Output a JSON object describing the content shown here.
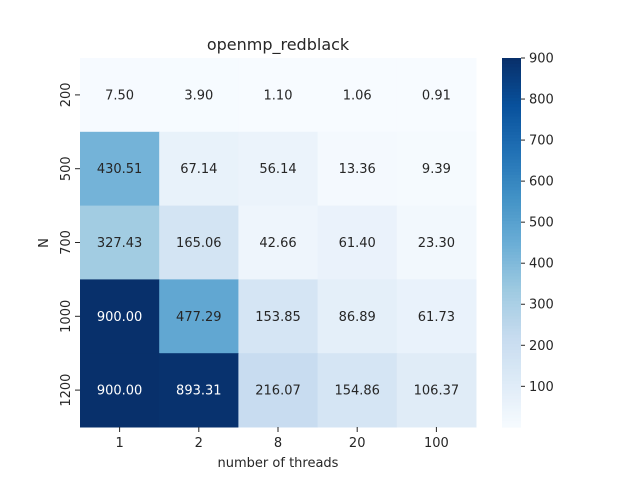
{
  "chart_data": {
    "type": "heatmap",
    "title": "openmp_redblack",
    "xlabel": "number of threads",
    "ylabel": "N",
    "x_categories": [
      "1",
      "2",
      "8",
      "20",
      "100"
    ],
    "y_categories": [
      "200",
      "500",
      "700",
      "1000",
      "1200"
    ],
    "values": [
      [
        7.5,
        3.9,
        1.1,
        1.06,
        0.91
      ],
      [
        430.51,
        67.14,
        56.14,
        13.36,
        9.39
      ],
      [
        327.43,
        165.06,
        42.66,
        61.4,
        23.3
      ],
      [
        900.0,
        477.29,
        153.85,
        86.89,
        61.73
      ],
      [
        900.0,
        893.31,
        216.07,
        154.86,
        106.37
      ]
    ],
    "cell_labels": [
      [
        "7.50",
        "3.90",
        "1.10",
        "1.06",
        "0.91"
      ],
      [
        "430.51",
        "67.14",
        "56.14",
        "13.36",
        "9.39"
      ],
      [
        "327.43",
        "165.06",
        "42.66",
        "61.40",
        "23.30"
      ],
      [
        "900.00",
        "477.29",
        "153.85",
        "86.89",
        "61.73"
      ],
      [
        "900.00",
        "893.31",
        "216.07",
        "154.86",
        "106.37"
      ]
    ],
    "colorbar": {
      "colormap": "Blues",
      "range": [
        0.91,
        900
      ],
      "ticks": [
        100,
        200,
        300,
        400,
        500,
        600,
        700,
        800,
        900
      ],
      "tick_labels": [
        "100",
        "200",
        "300",
        "400",
        "500",
        "600",
        "700",
        "800",
        "900"
      ]
    },
    "grid": false,
    "colors": {
      "low": "#f7fbff",
      "high": "#08306b"
    }
  }
}
